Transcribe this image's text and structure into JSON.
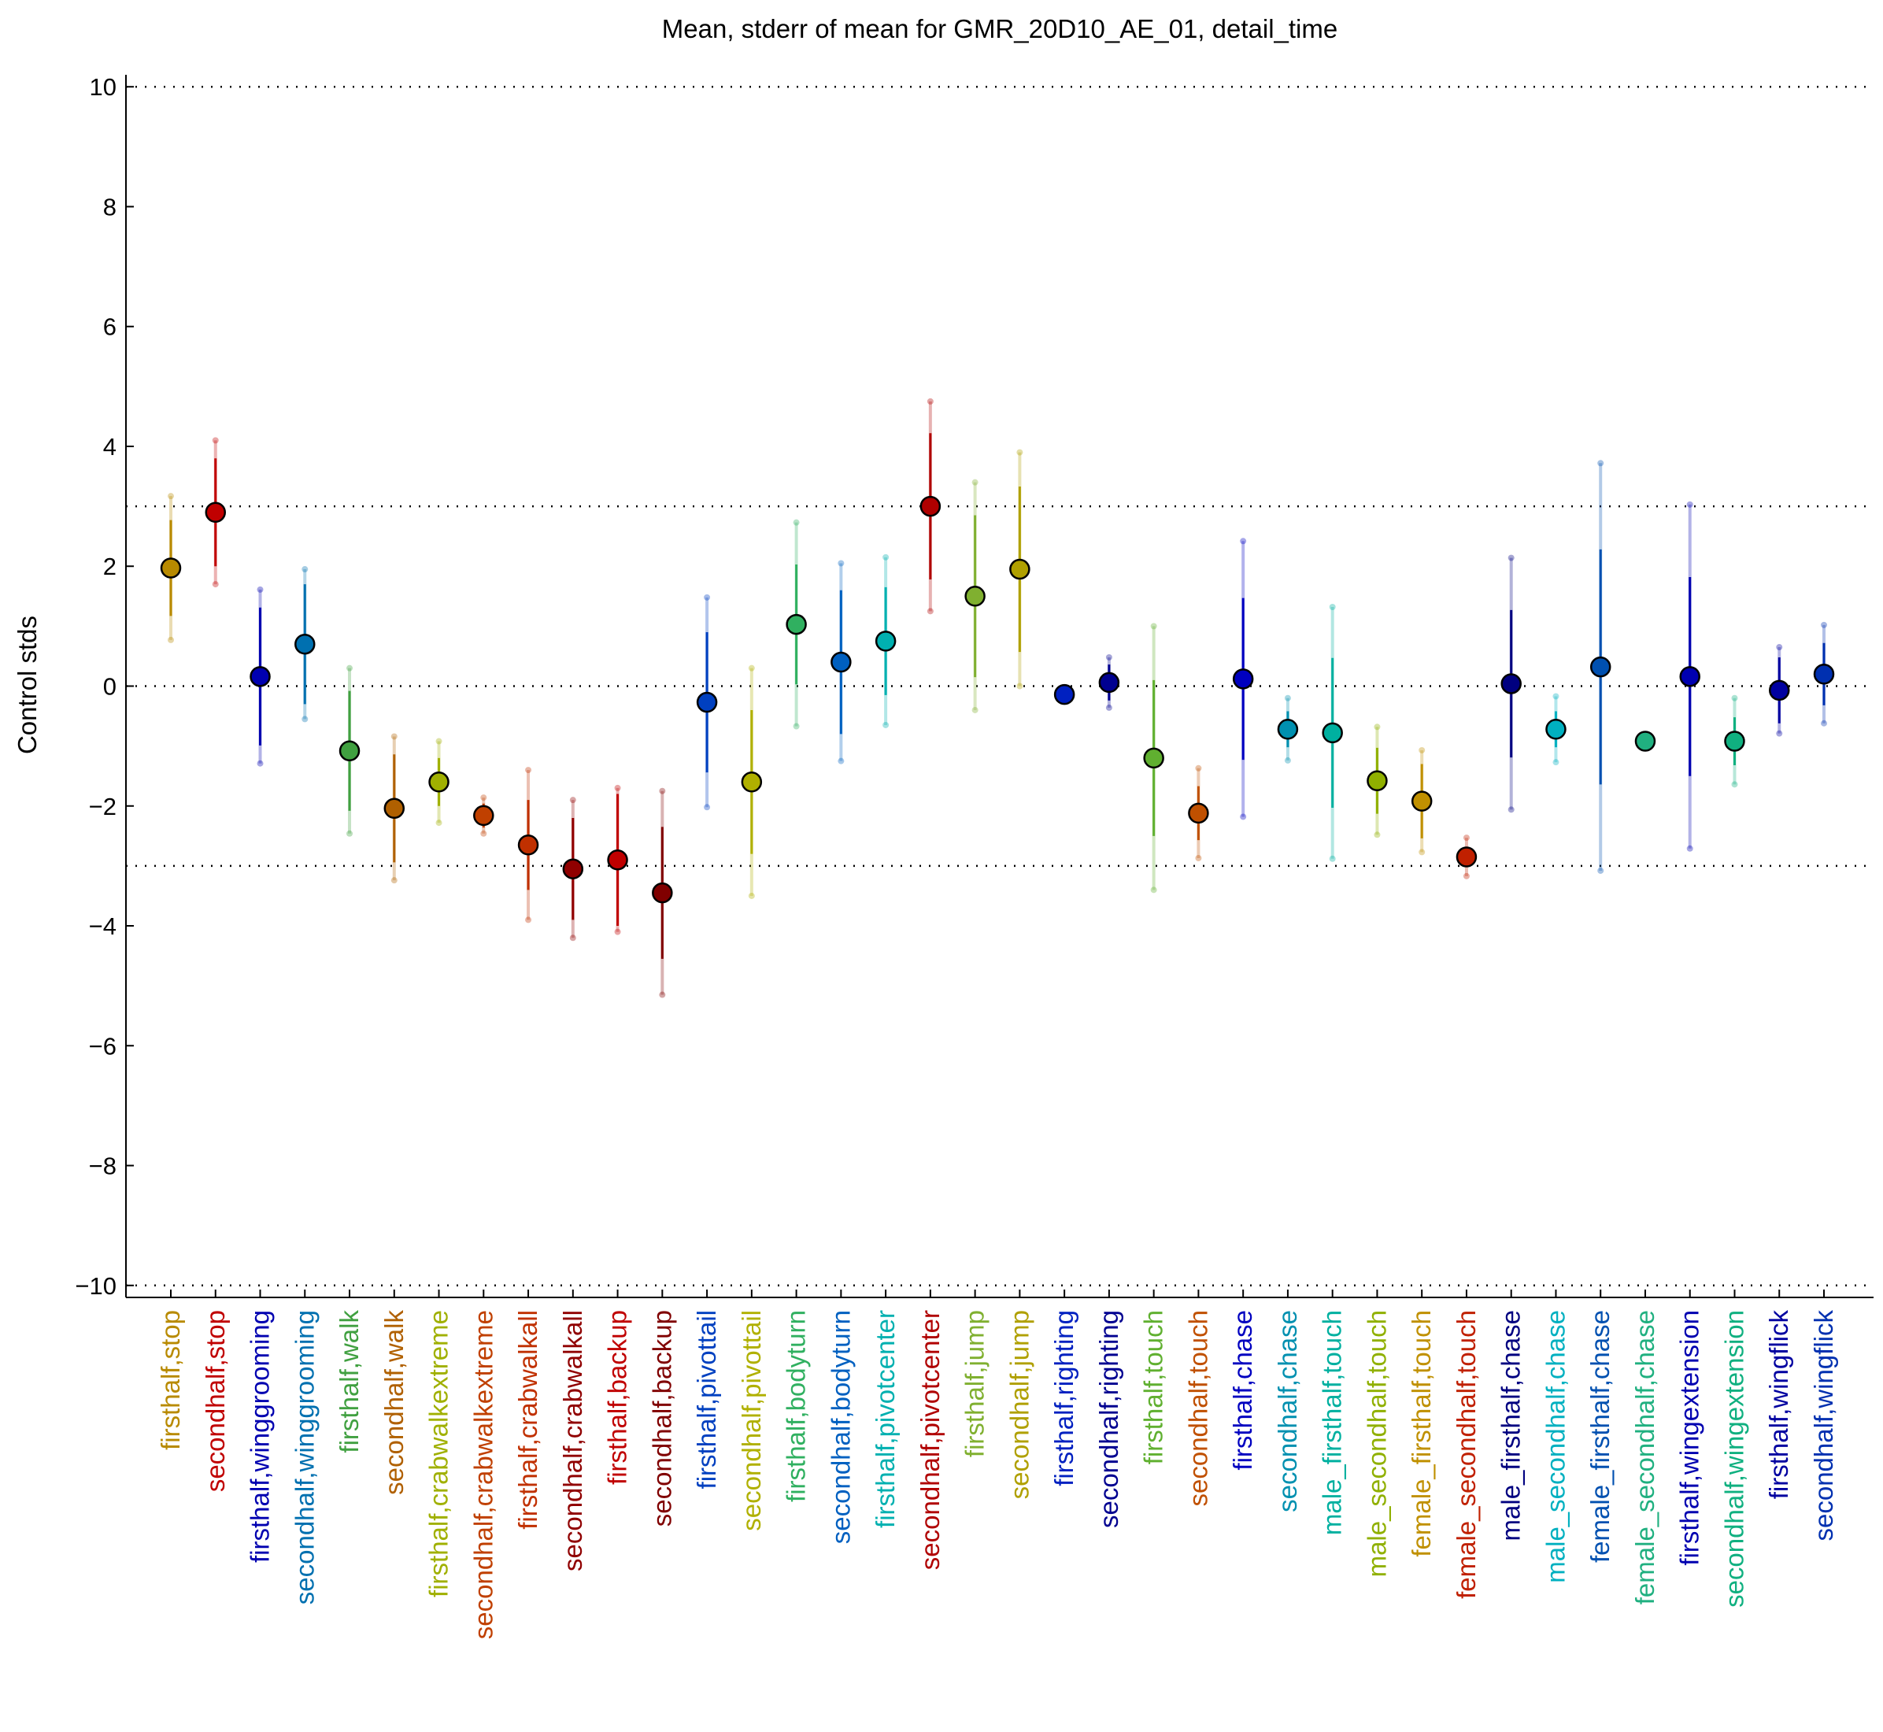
{
  "chart_data": {
    "type": "errorbar",
    "title": "Mean, stderr of mean for GMR_20D10_AE_01, detail_time",
    "ylabel": "Control stds",
    "categories": [
      "firsthalf,stop",
      "secondhalf,stop",
      "firsthalf,winggrooming",
      "secondhalf,winggrooming",
      "firsthalf,walk",
      "secondhalf,walk",
      "firsthalf,crabwalkextreme",
      "secondhalf,crabwalkextreme",
      "firsthalf,crabwalkall",
      "secondhalf,crabwalkall",
      "firsthalf,backup",
      "secondhalf,backup",
      "firsthalf,pivottail",
      "secondhalf,pivottail",
      "firsthalf,bodyturn",
      "secondhalf,bodyturn",
      "firsthalf,pivotcenter",
      "secondhalf,pivotcenter",
      "firsthalf,jump",
      "secondhalf,jump",
      "firsthalf,righting",
      "secondhalf,righting",
      "firsthalf,touch",
      "secondhalf,touch",
      "firsthalf,chase",
      "secondhalf,chase",
      "male_firsthalf,touch",
      "male_secondhalf,touch",
      "female_firsthalf,touch",
      "female_secondhalf,touch",
      "male_firsthalf,chase",
      "male_secondhalf,chase",
      "female_firsthalf,chase",
      "female_secondhalf,chase",
      "firsthalf,wingextension",
      "secondhalf,wingextension",
      "firsthalf,wingflick",
      "secondhalf,wingflick"
    ],
    "values": [
      1.97,
      2.9,
      0.16,
      0.7,
      -1.08,
      -2.04,
      -1.6,
      -2.16,
      -2.65,
      -3.05,
      -2.9,
      -3.45,
      -0.27,
      -1.6,
      1.03,
      0.4,
      0.75,
      3.0,
      1.5,
      1.95,
      -0.14,
      0.06,
      -1.2,
      -2.12,
      0.12,
      -0.72,
      -0.78,
      -1.58,
      -1.92,
      -2.85,
      0.04,
      -0.72,
      0.32,
      -0.92,
      0.16,
      -0.92,
      -0.07,
      0.2
    ],
    "errors": [
      0.8,
      0.9,
      1.15,
      1.0,
      1.0,
      0.9,
      0.4,
      0.2,
      0.75,
      0.85,
      1.1,
      1.1,
      1.17,
      1.2,
      1.0,
      1.2,
      0.9,
      1.22,
      1.35,
      1.38,
      0.1,
      0.3,
      1.3,
      0.45,
      1.35,
      0.3,
      1.25,
      0.55,
      0.62,
      0.15,
      1.23,
      0.3,
      1.96,
      0.08,
      1.66,
      0.4,
      0.55,
      0.52
    ],
    "outer_errors": [
      1.2,
      1.2,
      1.45,
      1.25,
      1.38,
      1.2,
      0.68,
      0.3,
      1.25,
      1.15,
      1.2,
      1.7,
      1.75,
      1.9,
      1.7,
      1.65,
      1.4,
      1.75,
      1.9,
      1.95,
      0.1,
      0.42,
      2.2,
      0.75,
      2.3,
      0.52,
      2.1,
      0.9,
      0.85,
      0.32,
      2.1,
      0.55,
      3.4,
      0.12,
      2.87,
      0.72,
      0.72,
      0.82
    ],
    "colors": [
      "#b88a00",
      "#c00000",
      "#0000b0",
      "#0070b0",
      "#40a040",
      "#b06000",
      "#a0b000",
      "#c04000",
      "#c03000",
      "#900000",
      "#c00000",
      "#800000",
      "#0040c0",
      "#b0b000",
      "#30b060",
      "#0060c0",
      "#00b0b0",
      "#b00000",
      "#80b030",
      "#b0a000",
      "#0020c0",
      "#000090",
      "#60b030",
      "#c05000",
      "#0000c0",
      "#0090b0",
      "#00b0a0",
      "#90b000",
      "#c09000",
      "#c02000",
      "#000080",
      "#00b0c0",
      "#0050b0",
      "#20b080",
      "#0000b0",
      "#10b080",
      "#0000a0",
      "#0030b0"
    ],
    "ylim": [
      -10.2,
      10.2
    ],
    "yticks": [
      {
        "value": -10,
        "label": "−10"
      },
      {
        "value": -8,
        "label": "−8"
      },
      {
        "value": -6,
        "label": "−6"
      },
      {
        "value": -4,
        "label": "−4"
      },
      {
        "value": -2,
        "label": "−2"
      },
      0,
      2,
      4,
      6,
      8,
      10
    ],
    "reference_lines": [
      -10,
      -3,
      0,
      3,
      10
    ]
  }
}
